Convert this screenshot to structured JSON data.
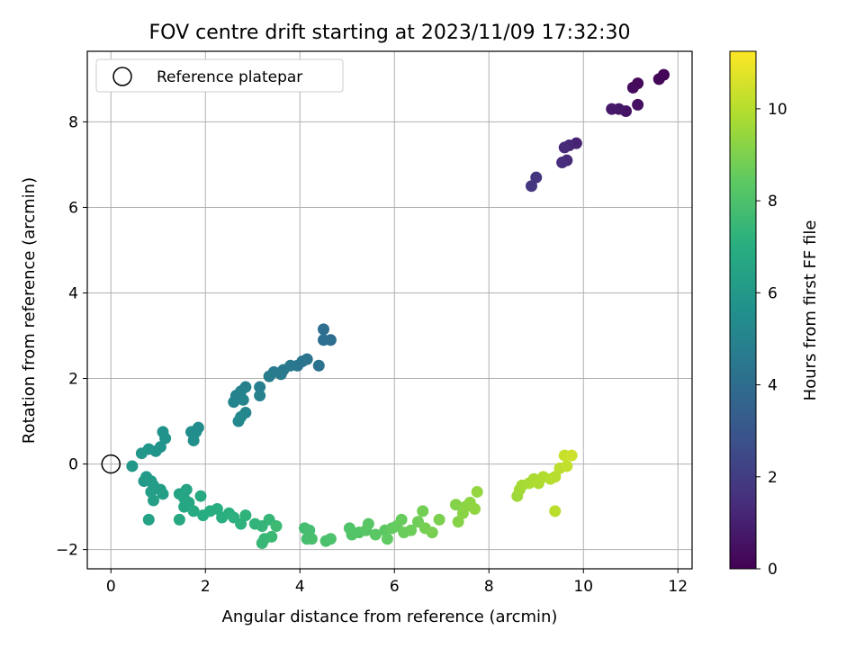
{
  "chart_data": {
    "type": "scatter",
    "title": "FOV centre drift starting at 2023/11/09 17:32:30",
    "xlabel": "Angular distance from reference (arcmin)",
    "ylabel": "Rotation from reference (arcmin)",
    "xlim": [
      -0.5,
      12.3
    ],
    "ylim": [
      -2.45,
      9.65
    ],
    "xticks": [
      "0",
      "2",
      "4",
      "6",
      "8",
      "10",
      "12"
    ],
    "yticks": [
      "−2",
      "0",
      "2",
      "4",
      "6",
      "8"
    ],
    "grid": true,
    "colormap": "viridis",
    "legend": {
      "placement": "top-left",
      "entries": [
        "Reference platepar"
      ]
    },
    "colorbar": {
      "label": "Hours from first FF file",
      "range": [
        0,
        11.25
      ],
      "ticks": [
        "0",
        "2",
        "4",
        "6",
        "8",
        "10"
      ]
    },
    "reference_point": {
      "x": 0,
      "y": 0
    },
    "points": [
      [
        11.7,
        9.1,
        0.1
      ],
      [
        11.6,
        9.0,
        0.15
      ],
      [
        11.15,
        8.9,
        0.3
      ],
      [
        11.05,
        8.8,
        0.35
      ],
      [
        11.15,
        8.4,
        0.5
      ],
      [
        10.9,
        8.25,
        0.6
      ],
      [
        10.75,
        8.3,
        0.7
      ],
      [
        10.6,
        8.3,
        0.75
      ],
      [
        9.85,
        7.5,
        1.1
      ],
      [
        9.7,
        7.45,
        1.2
      ],
      [
        9.6,
        7.4,
        1.3
      ],
      [
        9.65,
        7.1,
        1.35
      ],
      [
        9.55,
        7.05,
        1.4
      ],
      [
        9.0,
        6.7,
        1.7
      ],
      [
        8.9,
        6.5,
        1.8
      ],
      [
        4.65,
        2.9,
        4.0
      ],
      [
        4.5,
        3.15,
        4.05
      ],
      [
        4.5,
        2.9,
        4.1
      ],
      [
        4.4,
        2.3,
        4.2
      ],
      [
        4.15,
        2.45,
        4.3
      ],
      [
        4.05,
        2.4,
        4.35
      ],
      [
        3.95,
        2.3,
        4.4
      ],
      [
        3.8,
        2.3,
        4.5
      ],
      [
        3.65,
        2.2,
        4.55
      ],
      [
        3.6,
        2.1,
        4.6
      ],
      [
        3.45,
        2.15,
        4.65
      ],
      [
        3.35,
        2.05,
        4.7
      ],
      [
        3.15,
        1.8,
        4.8
      ],
      [
        3.15,
        1.6,
        4.85
      ],
      [
        2.85,
        1.8,
        4.9
      ],
      [
        2.75,
        1.7,
        4.95
      ],
      [
        2.65,
        1.6,
        5.0
      ],
      [
        2.6,
        1.45,
        5.05
      ],
      [
        2.8,
        1.5,
        5.1
      ],
      [
        2.85,
        1.2,
        5.15
      ],
      [
        2.75,
        1.1,
        5.2
      ],
      [
        2.7,
        1.0,
        5.25
      ],
      [
        1.85,
        0.85,
        5.4
      ],
      [
        1.8,
        0.75,
        5.45
      ],
      [
        1.7,
        0.75,
        5.5
      ],
      [
        1.75,
        0.55,
        5.55
      ],
      [
        1.1,
        0.75,
        5.65
      ],
      [
        1.15,
        0.6,
        5.7
      ],
      [
        1.05,
        0.4,
        5.75
      ],
      [
        0.95,
        0.3,
        5.8
      ],
      [
        0.8,
        0.35,
        5.85
      ],
      [
        0.65,
        0.25,
        5.9
      ],
      [
        0.45,
        -0.05,
        5.95
      ],
      [
        0.75,
        -0.3,
        6.0
      ],
      [
        0.7,
        -0.4,
        6.05
      ],
      [
        0.85,
        -0.4,
        6.1
      ],
      [
        0.9,
        -0.5,
        6.15
      ],
      [
        1.05,
        -0.6,
        6.2
      ],
      [
        0.85,
        -0.65,
        6.25
      ],
      [
        1.1,
        -0.7,
        6.3
      ],
      [
        0.9,
        -0.85,
        6.35
      ],
      [
        0.8,
        -1.3,
        6.4
      ],
      [
        1.45,
        -0.7,
        6.5
      ],
      [
        1.6,
        -0.6,
        6.55
      ],
      [
        1.55,
        -0.8,
        6.6
      ],
      [
        1.65,
        -0.9,
        6.65
      ],
      [
        1.55,
        -1.0,
        6.7
      ],
      [
        1.45,
        -1.3,
        6.75
      ],
      [
        1.75,
        -1.1,
        6.8
      ],
      [
        1.9,
        -0.75,
        6.85
      ],
      [
        1.95,
        -1.2,
        6.9
      ],
      [
        2.1,
        -1.1,
        6.95
      ],
      [
        2.25,
        -1.05,
        7.0
      ],
      [
        2.35,
        -1.25,
        7.05
      ],
      [
        2.5,
        -1.15,
        7.1
      ],
      [
        2.6,
        -1.25,
        7.15
      ],
      [
        2.75,
        -1.4,
        7.2
      ],
      [
        2.85,
        -1.2,
        7.25
      ],
      [
        3.05,
        -1.4,
        7.3
      ],
      [
        3.2,
        -1.45,
        7.35
      ],
      [
        3.35,
        -1.3,
        7.4
      ],
      [
        3.25,
        -1.75,
        7.45
      ],
      [
        3.2,
        -1.85,
        7.5
      ],
      [
        3.4,
        -1.7,
        7.55
      ],
      [
        3.5,
        -1.45,
        7.6
      ],
      [
        4.1,
        -1.5,
        7.75
      ],
      [
        4.2,
        -1.55,
        7.8
      ],
      [
        4.15,
        -1.75,
        7.85
      ],
      [
        4.25,
        -1.75,
        7.9
      ],
      [
        4.55,
        -1.8,
        7.95
      ],
      [
        4.65,
        -1.75,
        8.0
      ],
      [
        5.05,
        -1.5,
        8.1
      ],
      [
        5.1,
        -1.65,
        8.15
      ],
      [
        5.25,
        -1.6,
        8.2
      ],
      [
        5.4,
        -1.55,
        8.25
      ],
      [
        5.45,
        -1.4,
        8.3
      ],
      [
        5.6,
        -1.65,
        8.35
      ],
      [
        5.8,
        -1.55,
        8.4
      ],
      [
        5.85,
        -1.75,
        8.45
      ],
      [
        5.95,
        -1.5,
        8.5
      ],
      [
        6.05,
        -1.45,
        8.55
      ],
      [
        6.15,
        -1.3,
        8.6
      ],
      [
        6.2,
        -1.6,
        8.65
      ],
      [
        6.35,
        -1.55,
        8.7
      ],
      [
        6.5,
        -1.35,
        8.75
      ],
      [
        6.6,
        -1.1,
        8.8
      ],
      [
        6.65,
        -1.5,
        8.85
      ],
      [
        6.8,
        -1.6,
        8.9
      ],
      [
        6.95,
        -1.3,
        8.95
      ],
      [
        7.3,
        -0.95,
        9.1
      ],
      [
        7.35,
        -1.35,
        9.15
      ],
      [
        7.45,
        -1.15,
        9.2
      ],
      [
        7.5,
        -1.0,
        9.25
      ],
      [
        7.6,
        -0.9,
        9.3
      ],
      [
        7.7,
        -1.05,
        9.35
      ],
      [
        7.75,
        -0.65,
        9.4
      ],
      [
        8.6,
        -0.75,
        9.6
      ],
      [
        8.65,
        -0.6,
        9.65
      ],
      [
        8.7,
        -0.5,
        9.7
      ],
      [
        8.85,
        -0.45,
        9.75
      ],
      [
        8.95,
        -0.35,
        9.8
      ],
      [
        9.05,
        -0.45,
        9.85
      ],
      [
        9.15,
        -0.3,
        9.9
      ],
      [
        9.3,
        -0.35,
        9.95
      ],
      [
        9.4,
        -0.3,
        10.0
      ],
      [
        9.5,
        -0.1,
        10.1
      ],
      [
        9.65,
        -0.05,
        10.2
      ],
      [
        9.6,
        0.2,
        10.3
      ],
      [
        9.75,
        0.2,
        10.4
      ],
      [
        9.4,
        -1.1,
        10.05
      ]
    ]
  }
}
